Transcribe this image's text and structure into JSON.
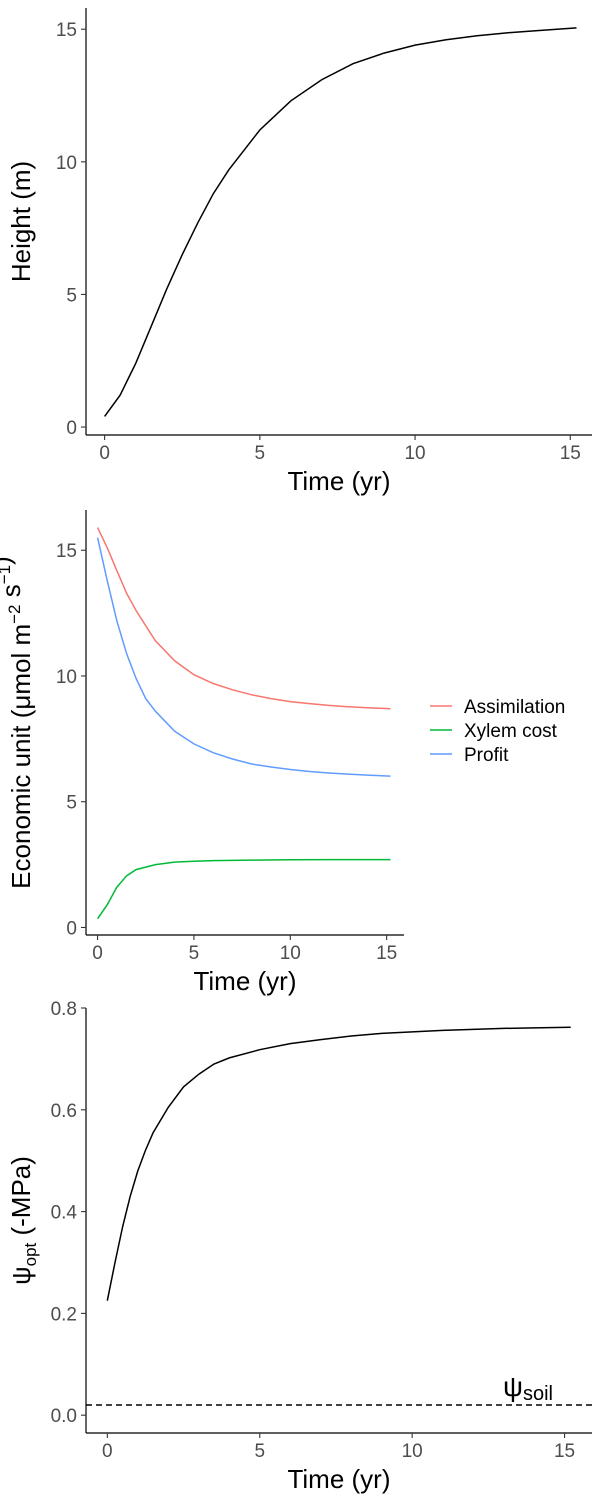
{
  "chart_data": [
    {
      "type": "line",
      "xlabel": "Time (yr)",
      "ylabel": "Height (m)",
      "xlim": [
        -0.6,
        15.7
      ],
      "ylim": [
        -0.3,
        15.8
      ],
      "x_ticks": [
        0,
        5,
        10,
        15
      ],
      "y_ticks": [
        0,
        5,
        10,
        15
      ],
      "grid": false,
      "series": [
        {
          "color": "#000000",
          "x": [
            0,
            0.5,
            1,
            1.5,
            2,
            2.5,
            3,
            3.5,
            4,
            5,
            6,
            7,
            8,
            9,
            10,
            11,
            12,
            13,
            14,
            15.2
          ],
          "y": [
            0.4,
            1.2,
            2.4,
            3.8,
            5.2,
            6.5,
            7.7,
            8.8,
            9.7,
            11.2,
            12.3,
            13.1,
            13.7,
            14.1,
            14.4,
            14.6,
            14.75,
            14.87,
            14.95,
            15.05
          ]
        }
      ]
    },
    {
      "type": "line",
      "xlabel": "Time (yr)",
      "ylabel": "Economic unit (μmol m⁻² s⁻¹)",
      "xlim": [
        -0.6,
        15.9
      ],
      "ylim": [
        -0.3,
        16.6
      ],
      "x_ticks": [
        0,
        5,
        10,
        15
      ],
      "y_ticks": [
        0,
        5,
        10,
        15
      ],
      "grid": false,
      "legend_position": "right",
      "series": [
        {
          "name": "Assimilation",
          "color": "#f8766d",
          "x": [
            0,
            0.5,
            1,
            1.5,
            2,
            3,
            4,
            5,
            6,
            7,
            8,
            9,
            10,
            11,
            12,
            13,
            14,
            15.2
          ],
          "y": [
            15.9,
            15.1,
            14.2,
            13.3,
            12.6,
            11.4,
            10.6,
            10.05,
            9.7,
            9.45,
            9.25,
            9.1,
            8.98,
            8.9,
            8.83,
            8.78,
            8.74,
            8.7
          ]
        },
        {
          "name": "Xylem cost",
          "color": "#00ba38",
          "x": [
            0,
            0.5,
            1,
            1.5,
            2,
            3,
            4,
            5,
            6,
            8,
            10,
            12,
            15.2
          ],
          "y": [
            0.35,
            0.9,
            1.6,
            2.05,
            2.3,
            2.5,
            2.6,
            2.63,
            2.66,
            2.68,
            2.69,
            2.7,
            2.7
          ]
        },
        {
          "name": "Profit",
          "color": "#619cff",
          "x": [
            0,
            0.5,
            1,
            1.5,
            2,
            2.5,
            3,
            4,
            5,
            6,
            7,
            8,
            9,
            10,
            11,
            12,
            13,
            14,
            15.2
          ],
          "y": [
            15.5,
            13.8,
            12.2,
            10.9,
            9.9,
            9.1,
            8.6,
            7.8,
            7.3,
            6.95,
            6.7,
            6.5,
            6.38,
            6.28,
            6.2,
            6.14,
            6.1,
            6.06,
            6.02
          ]
        }
      ]
    },
    {
      "type": "line",
      "xlabel": "Time (yr)",
      "ylabel": "ψopt (-MPa)",
      "xlim": [
        -0.7,
        15.9
      ],
      "ylim": [
        -0.035,
        0.8
      ],
      "x_ticks": [
        0,
        5,
        10,
        15
      ],
      "y_ticks": [
        0.0,
        0.2,
        0.4,
        0.6,
        0.8
      ],
      "grid": false,
      "series": [
        {
          "color": "#000000",
          "x": [
            0,
            0.25,
            0.5,
            0.75,
            1,
            1.25,
            1.5,
            2,
            2.5,
            3,
            3.5,
            4,
            5,
            6,
            7,
            8,
            9,
            10,
            11,
            12,
            13,
            14,
            15.2
          ],
          "y": [
            0.225,
            0.3,
            0.37,
            0.43,
            0.48,
            0.52,
            0.555,
            0.605,
            0.645,
            0.67,
            0.69,
            0.702,
            0.718,
            0.73,
            0.738,
            0.745,
            0.75,
            0.753,
            0.756,
            0.758,
            0.76,
            0.761,
            0.762
          ]
        },
        {
          "name": "ψsoil",
          "color": "#000000",
          "dashed": true,
          "x": [
            -0.7,
            15.9
          ],
          "y": [
            0.02,
            0.02
          ]
        }
      ],
      "annotations": [
        "ψsoil"
      ]
    }
  ],
  "legend": [
    "Assimilation",
    "Xylem cost",
    "Profit"
  ],
  "annotation_text": "ψsoil"
}
